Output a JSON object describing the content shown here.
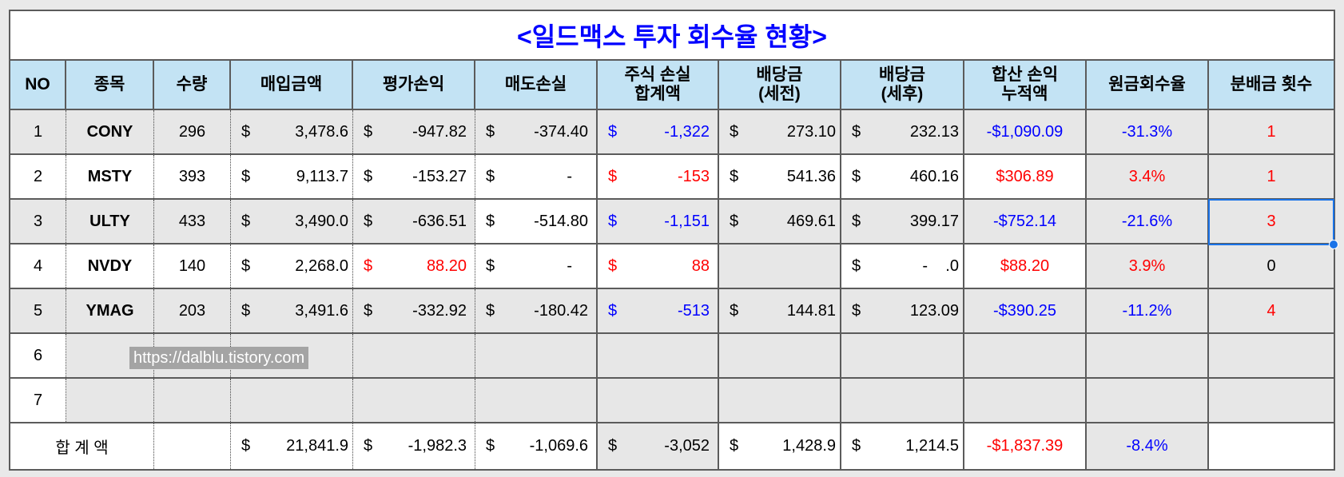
{
  "title": "<일드맥스 투자 회수율 현황>",
  "headers": [
    "NO",
    "종목",
    "수량",
    "매입금액",
    "평가손익",
    "매도손실",
    "주식 손실\n합계액",
    "배당금\n(세전)",
    "배당금\n(세후)",
    "합산 손익\n누적액",
    "원금회수율",
    "분배금 횟수"
  ],
  "rows": [
    {
      "no": "1",
      "ticker": "CONY",
      "qty": "296",
      "purchase": {
        "cur": "$",
        "val": "3,478.6"
      },
      "valuation_pl": {
        "cur": "$",
        "val": "-947.82"
      },
      "sale_loss": {
        "cur": "$",
        "val": "-374.40"
      },
      "stock_loss_total": {
        "cur": "$",
        "val": "-1,322"
      },
      "dividend_pretax": {
        "cur": "$",
        "val": "273.10"
      },
      "dividend_aftertax": {
        "cur": "$",
        "val": "232.13"
      },
      "cumulative_pl": "-$1,090.09",
      "recovery_rate": "-31.3%",
      "distribution_count": "1"
    },
    {
      "no": "2",
      "ticker": "MSTY",
      "qty": "393",
      "purchase": {
        "cur": "$",
        "val": "9,113.7"
      },
      "valuation_pl": {
        "cur": "$",
        "val": "-153.27"
      },
      "sale_loss": {
        "cur": "$",
        "val": "-"
      },
      "stock_loss_total": {
        "cur": "$",
        "val": "-153"
      },
      "dividend_pretax": {
        "cur": "$",
        "val": "541.36"
      },
      "dividend_aftertax": {
        "cur": "$",
        "val": "460.16"
      },
      "cumulative_pl": "$306.89",
      "recovery_rate": "3.4%",
      "distribution_count": "1"
    },
    {
      "no": "3",
      "ticker": "ULTY",
      "qty": "433",
      "purchase": {
        "cur": "$",
        "val": "3,490.0"
      },
      "valuation_pl": {
        "cur": "$",
        "val": "-636.51"
      },
      "sale_loss": {
        "cur": "$",
        "val": "-514.80"
      },
      "stock_loss_total": {
        "cur": "$",
        "val": "-1,151"
      },
      "dividend_pretax": {
        "cur": "$",
        "val": "469.61"
      },
      "dividend_aftertax": {
        "cur": "$",
        "val": "399.17"
      },
      "cumulative_pl": "-$752.14",
      "recovery_rate": "-21.6%",
      "distribution_count": "3"
    },
    {
      "no": "4",
      "ticker": "NVDY",
      "qty": "140",
      "purchase": {
        "cur": "$",
        "val": "2,268.0"
      },
      "valuation_pl": {
        "cur": "$",
        "val": "88.20"
      },
      "sale_loss": {
        "cur": "$",
        "val": "-"
      },
      "stock_loss_total": {
        "cur": "$",
        "val": "88"
      },
      "dividend_aftertax": {
        "cur": "$",
        "val": "-    .0"
      },
      "cumulative_pl": "$88.20",
      "recovery_rate": "3.9%",
      "distribution_count": "0"
    },
    {
      "no": "5",
      "ticker": "YMAG",
      "qty": "203",
      "purchase": {
        "cur": "$",
        "val": "3,491.6"
      },
      "valuation_pl": {
        "cur": "$",
        "val": "-332.92"
      },
      "sale_loss": {
        "cur": "$",
        "val": "-180.42"
      },
      "stock_loss_total": {
        "cur": "$",
        "val": "-513"
      },
      "dividend_pretax": {
        "cur": "$",
        "val": "144.81"
      },
      "dividend_aftertax": {
        "cur": "$",
        "val": "123.09"
      },
      "cumulative_pl": "-$390.25",
      "recovery_rate": "-11.2%",
      "distribution_count": "4"
    },
    {
      "no": "6"
    },
    {
      "no": "7"
    }
  ],
  "total": {
    "label": "합 계 액",
    "purchase": {
      "cur": "$",
      "val": "21,841.9"
    },
    "valuation_pl": {
      "cur": "$",
      "val": "-1,982.3"
    },
    "sale_loss": {
      "cur": "$",
      "val": "-1,069.6"
    },
    "stock_loss_total": {
      "cur": "$",
      "val": "-3,052"
    },
    "dividend_pretax": {
      "cur": "$",
      "val": "1,428.9"
    },
    "dividend_aftertax": {
      "cur": "$",
      "val": "1,214.5"
    },
    "cumulative_pl": "-$1,837.39",
    "recovery_rate": "-8.4%"
  },
  "watermark": "https://dalblu.tistory.com",
  "colors": {
    "title": "#0000ff",
    "blue": "#0000ff",
    "red": "#ff0000",
    "header_bg": "#c3e3f4",
    "shaded_cell": "#e7e7e7",
    "selection": "#1a73e8",
    "grid_line": "#5b5b5b",
    "page_bg": "#e9e9e9"
  }
}
